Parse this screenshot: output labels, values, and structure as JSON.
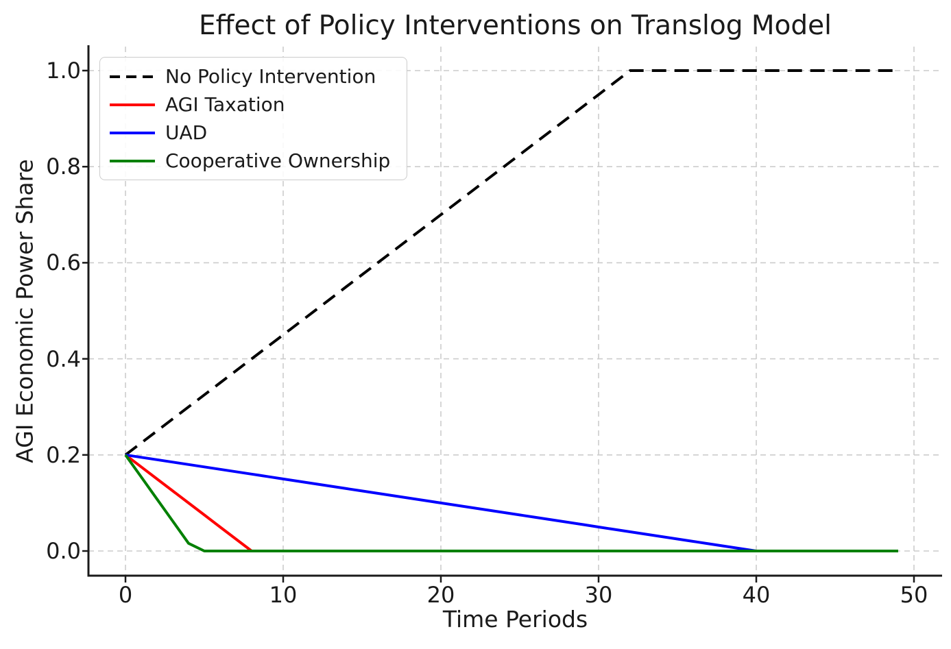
{
  "chart_data": {
    "type": "line",
    "title": "Effect of Policy Interventions on Translog Model",
    "xlabel": "Time Periods",
    "ylabel": "AGI Economic Power Share",
    "grid": true,
    "legend_position": "upper left",
    "xlim": [
      -2.45,
      51.45
    ],
    "ylim": [
      -0.05,
      1.05
    ],
    "style": {
      "background": "#ffffff",
      "grid_color": "#cccccc",
      "axis_color": "#1a1a1a",
      "text_color": "#1a1a1a",
      "legend_border_color": "#cccccc"
    },
    "xticks": [
      {
        "value": 0,
        "label": "0"
      },
      {
        "value": 10,
        "label": "10"
      },
      {
        "value": 20,
        "label": "20"
      },
      {
        "value": 30,
        "label": "30"
      },
      {
        "value": 40,
        "label": "40"
      },
      {
        "value": 50,
        "label": "50"
      }
    ],
    "yticks": [
      {
        "value": 0.0,
        "label": "0.0"
      },
      {
        "value": 0.2,
        "label": "0.2"
      },
      {
        "value": 0.4,
        "label": "0.4"
      },
      {
        "value": 0.6,
        "label": "0.6"
      },
      {
        "value": 0.8,
        "label": "0.8"
      },
      {
        "value": 1.0,
        "label": "1.0"
      }
    ],
    "x": [
      0,
      1,
      2,
      3,
      4,
      5,
      6,
      7,
      8,
      9,
      10,
      11,
      12,
      13,
      14,
      15,
      16,
      17,
      18,
      19,
      20,
      21,
      22,
      23,
      24,
      25,
      26,
      27,
      28,
      29,
      30,
      31,
      32,
      33,
      34,
      35,
      36,
      37,
      38,
      39,
      40,
      41,
      42,
      43,
      44,
      45,
      46,
      47,
      48,
      49
    ],
    "series": [
      {
        "name": "No Policy Intervention",
        "color": "#000000",
        "dash": "dashed",
        "values": [
          0.2,
          0.225,
          0.25,
          0.275,
          0.3,
          0.325,
          0.35,
          0.375,
          0.4,
          0.425,
          0.45,
          0.475,
          0.5,
          0.525,
          0.55,
          0.575,
          0.6,
          0.625,
          0.65,
          0.675,
          0.7,
          0.725,
          0.75,
          0.775,
          0.8,
          0.825,
          0.85,
          0.875,
          0.9,
          0.925,
          0.95,
          0.975,
          1.0,
          1.0,
          1.0,
          1.0,
          1.0,
          1.0,
          1.0,
          1.0,
          1.0,
          1.0,
          1.0,
          1.0,
          1.0,
          1.0,
          1.0,
          1.0,
          1.0,
          1.0
        ]
      },
      {
        "name": "AGI Taxation",
        "color": "#ff0000",
        "dash": "solid",
        "values": [
          0.2,
          0.175,
          0.15,
          0.125,
          0.1,
          0.075,
          0.05,
          0.025,
          0.0,
          0.0,
          0.0,
          0.0,
          0.0,
          0.0,
          0.0,
          0.0,
          0.0,
          0.0,
          0.0,
          0.0,
          0.0,
          0.0,
          0.0,
          0.0,
          0.0,
          0.0,
          0.0,
          0.0,
          0.0,
          0.0,
          0.0,
          0.0,
          0.0,
          0.0,
          0.0,
          0.0,
          0.0,
          0.0,
          0.0,
          0.0,
          0.0,
          0.0,
          0.0,
          0.0,
          0.0,
          0.0,
          0.0,
          0.0,
          0.0,
          0.0
        ]
      },
      {
        "name": "UAD",
        "color": "#0000ff",
        "dash": "solid",
        "values": [
          0.2,
          0.195,
          0.19,
          0.185,
          0.18,
          0.175,
          0.17,
          0.165,
          0.16,
          0.155,
          0.15,
          0.145,
          0.14,
          0.135,
          0.13,
          0.125,
          0.12,
          0.115,
          0.11,
          0.105,
          0.1,
          0.095,
          0.09,
          0.085,
          0.08,
          0.075,
          0.07,
          0.065,
          0.06,
          0.055,
          0.05,
          0.045,
          0.04,
          0.035,
          0.03,
          0.025,
          0.02,
          0.015,
          0.01,
          0.005,
          0.0,
          0.0,
          0.0,
          0.0,
          0.0,
          0.0,
          0.0,
          0.0,
          0.0,
          0.0
        ]
      },
      {
        "name": "Cooperative Ownership",
        "color": "#008000",
        "dash": "solid",
        "values": [
          0.2,
          0.154,
          0.108,
          0.062,
          0.016,
          0.0,
          0.0,
          0.0,
          0.0,
          0.0,
          0.0,
          0.0,
          0.0,
          0.0,
          0.0,
          0.0,
          0.0,
          0.0,
          0.0,
          0.0,
          0.0,
          0.0,
          0.0,
          0.0,
          0.0,
          0.0,
          0.0,
          0.0,
          0.0,
          0.0,
          0.0,
          0.0,
          0.0,
          0.0,
          0.0,
          0.0,
          0.0,
          0.0,
          0.0,
          0.0,
          0.0,
          0.0,
          0.0,
          0.0,
          0.0,
          0.0,
          0.0,
          0.0,
          0.0,
          0.0
        ]
      }
    ]
  }
}
